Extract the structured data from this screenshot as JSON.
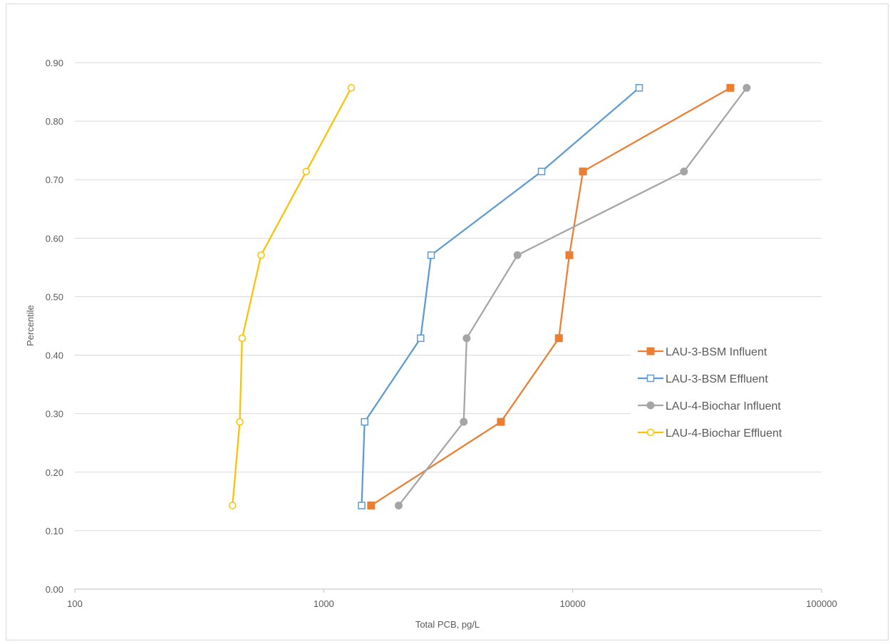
{
  "chart_data": {
    "type": "scatter",
    "title": "",
    "xlabel": "Total PCB, pg/L",
    "ylabel": "Percentile",
    "xscale": "log",
    "xlim": [
      100,
      100000
    ],
    "ylim": [
      0,
      0.9
    ],
    "x_ticks": [
      "100",
      "1000",
      "10000",
      "100000"
    ],
    "y_ticks": [
      "0.00",
      "0.10",
      "0.20",
      "0.30",
      "0.40",
      "0.50",
      "0.60",
      "0.70",
      "0.80",
      "0.90"
    ],
    "grid": "horizontal",
    "legend_position": "right",
    "series": [
      {
        "name": "LAU-3-BSM Influent",
        "color": "#ed7d31",
        "marker": "square-filled",
        "x": [
          1550,
          5150,
          8800,
          9700,
          11000,
          43000
        ],
        "y": [
          0.143,
          0.286,
          0.429,
          0.571,
          0.714,
          0.857
        ]
      },
      {
        "name": "LAU-3-BSM  Effluent",
        "color": "#5b9bd5",
        "marker": "square-open",
        "x": [
          1420,
          1460,
          2450,
          2700,
          7500,
          18500
        ],
        "y": [
          0.143,
          0.286,
          0.429,
          0.571,
          0.714,
          0.857
        ]
      },
      {
        "name": "LAU-4-Biochar Influent",
        "color": "#a5a5a5",
        "marker": "circle-filled",
        "x": [
          2000,
          3650,
          3750,
          6000,
          28000,
          50000
        ],
        "y": [
          0.143,
          0.286,
          0.429,
          0.571,
          0.714,
          0.857
        ]
      },
      {
        "name": "LAU-4-Biochar  Effluent",
        "color": "#ffc000",
        "marker": "circle-open",
        "x": [
          430,
          460,
          470,
          560,
          850,
          1290
        ],
        "y": [
          0.143,
          0.286,
          0.429,
          0.571,
          0.714,
          0.857
        ]
      }
    ]
  }
}
